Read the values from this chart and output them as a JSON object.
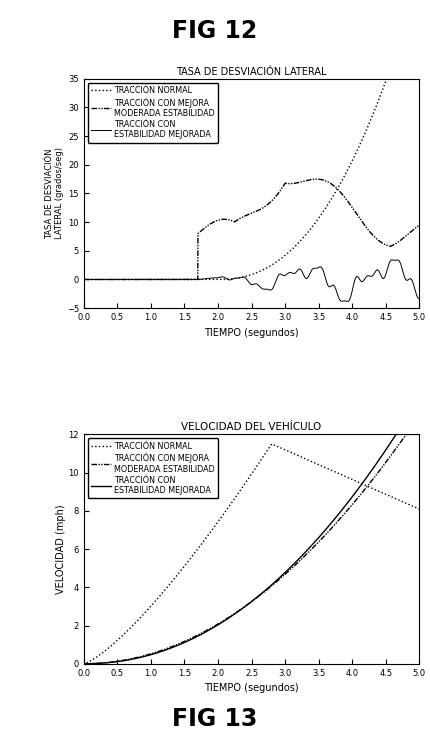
{
  "fig12_title": "FIG 12",
  "fig12_subtitle": "TASA DE DESVIACIÓN LATERAL",
  "fig12_ylabel": "TASA DE DESVIACIÓN\nLATERAL (grados/seg)",
  "fig12_xlabel": "TIEMPO (segundos)",
  "fig12_xlim": [
    0,
    5
  ],
  "fig12_ylim": [
    -5,
    35
  ],
  "fig12_yticks": [
    -5,
    0,
    5,
    10,
    15,
    20,
    25,
    30,
    35
  ],
  "fig12_xticks": [
    0,
    0.5,
    1,
    1.5,
    2,
    2.5,
    3,
    3.5,
    4,
    4.5,
    5
  ],
  "fig13_title": "VELOCIDAD DEL VEHÍCULO",
  "fig13_ylabel": "VELOCIDAD (mph)",
  "fig13_xlabel": "TIEMPO (segundos)",
  "fig13_xlim": [
    0,
    5
  ],
  "fig13_ylim": [
    0,
    12
  ],
  "fig13_yticks": [
    0,
    2,
    4,
    6,
    8,
    10,
    12
  ],
  "fig13_xticks": [
    0,
    0.5,
    1,
    1.5,
    2,
    2.5,
    3,
    3.5,
    4,
    4.5,
    5
  ],
  "fig13_bottom_label": "FIG 13",
  "legend_labels": [
    "TRACCIÓN NORMAL",
    "TRACCIÓN CON MEJORA\nMODERADA ESTABILIDAD",
    "TRACCIÓN CON\nESTABILIDAD MEJORADA"
  ],
  "bg_color": "#ffffff",
  "text_color": "#000000"
}
